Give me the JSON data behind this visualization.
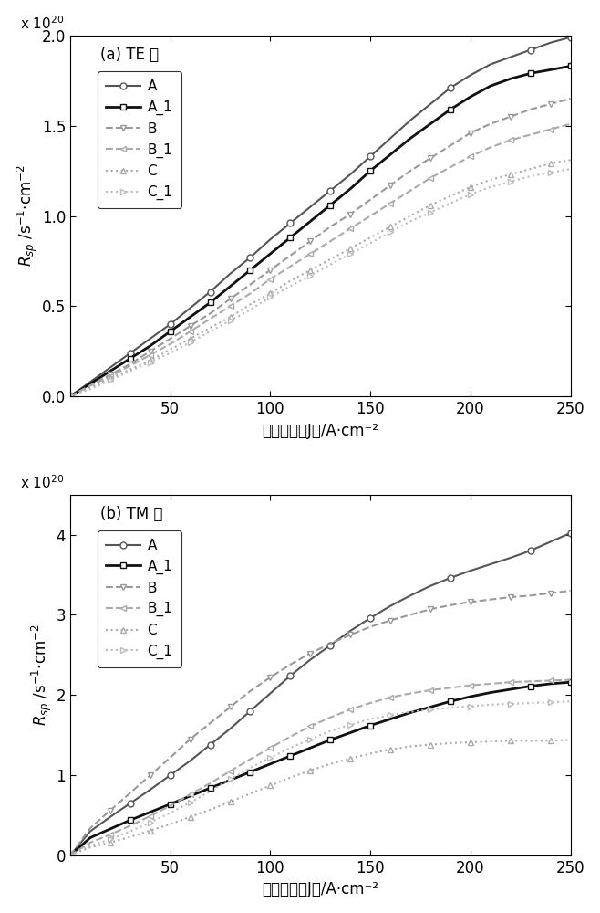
{
  "te": {
    "title": "(a) TE 模",
    "x": [
      0,
      10,
      20,
      30,
      40,
      50,
      60,
      70,
      80,
      90,
      100,
      110,
      120,
      130,
      140,
      150,
      160,
      170,
      180,
      190,
      200,
      210,
      220,
      230,
      240,
      250
    ],
    "A": [
      0.0,
      0.08,
      0.16,
      0.24,
      0.32,
      0.4,
      0.49,
      0.58,
      0.68,
      0.77,
      0.87,
      0.96,
      1.05,
      1.14,
      1.23,
      1.33,
      1.43,
      1.53,
      1.62,
      1.71,
      1.78,
      1.84,
      1.88,
      1.92,
      1.96,
      1.99
    ],
    "A_1": [
      0.0,
      0.07,
      0.14,
      0.21,
      0.28,
      0.36,
      0.44,
      0.52,
      0.61,
      0.7,
      0.79,
      0.88,
      0.97,
      1.06,
      1.15,
      1.25,
      1.34,
      1.43,
      1.51,
      1.59,
      1.66,
      1.72,
      1.76,
      1.79,
      1.81,
      1.83
    ],
    "B": [
      0.0,
      0.06,
      0.12,
      0.18,
      0.25,
      0.32,
      0.39,
      0.46,
      0.54,
      0.62,
      0.7,
      0.78,
      0.86,
      0.94,
      1.01,
      1.09,
      1.17,
      1.25,
      1.32,
      1.39,
      1.46,
      1.51,
      1.55,
      1.59,
      1.62,
      1.65
    ],
    "B_1": [
      0.0,
      0.06,
      0.11,
      0.17,
      0.23,
      0.29,
      0.36,
      0.43,
      0.5,
      0.57,
      0.65,
      0.72,
      0.79,
      0.86,
      0.93,
      1.0,
      1.07,
      1.14,
      1.21,
      1.27,
      1.33,
      1.38,
      1.42,
      1.45,
      1.48,
      1.51
    ],
    "C": [
      0.0,
      0.05,
      0.1,
      0.15,
      0.2,
      0.26,
      0.32,
      0.38,
      0.44,
      0.51,
      0.57,
      0.64,
      0.7,
      0.76,
      0.82,
      0.88,
      0.94,
      1.0,
      1.06,
      1.11,
      1.16,
      1.2,
      1.23,
      1.26,
      1.29,
      1.31
    ],
    "C_1": [
      0.0,
      0.04,
      0.09,
      0.14,
      0.19,
      0.24,
      0.3,
      0.36,
      0.42,
      0.48,
      0.55,
      0.61,
      0.67,
      0.73,
      0.79,
      0.85,
      0.91,
      0.97,
      1.02,
      1.07,
      1.12,
      1.16,
      1.19,
      1.22,
      1.24,
      1.26
    ],
    "ylim": [
      0,
      2.0
    ],
    "yticks": [
      0,
      0.5,
      1.0,
      1.5,
      2.0
    ],
    "marker_every_A": [
      0,
      3,
      5,
      7,
      9,
      11,
      13,
      15,
      19,
      23,
      25
    ],
    "marker_every_A1": [
      0,
      3,
      5,
      7,
      9,
      11,
      13,
      15,
      19,
      23,
      25
    ],
    "marker_every_B": [
      0,
      2,
      4,
      6,
      8,
      10,
      12,
      14,
      16,
      18,
      20,
      22,
      24
    ],
    "marker_every_B1": [
      0,
      2,
      4,
      6,
      8,
      10,
      12,
      14,
      16,
      18,
      20,
      22,
      24
    ],
    "marker_every_C": [
      0,
      2,
      4,
      6,
      8,
      10,
      12,
      14,
      16,
      18,
      20,
      22,
      24
    ],
    "marker_every_C1": [
      0,
      2,
      4,
      6,
      8,
      10,
      12,
      14,
      16,
      18,
      20,
      22,
      24
    ]
  },
  "tm": {
    "title": "(b) TM 模",
    "x": [
      0,
      10,
      20,
      30,
      40,
      50,
      60,
      70,
      80,
      90,
      100,
      110,
      120,
      130,
      140,
      150,
      160,
      170,
      180,
      190,
      200,
      210,
      220,
      230,
      240,
      250
    ],
    "A": [
      0.0,
      0.3,
      0.48,
      0.65,
      0.82,
      1.0,
      1.18,
      1.38,
      1.58,
      1.8,
      2.02,
      2.24,
      2.44,
      2.62,
      2.8,
      2.96,
      3.11,
      3.24,
      3.36,
      3.46,
      3.55,
      3.63,
      3.71,
      3.8,
      3.91,
      4.02
    ],
    "A_1": [
      0.0,
      0.22,
      0.33,
      0.44,
      0.54,
      0.64,
      0.74,
      0.84,
      0.94,
      1.04,
      1.14,
      1.24,
      1.34,
      1.44,
      1.53,
      1.62,
      1.7,
      1.78,
      1.85,
      1.92,
      1.98,
      2.03,
      2.07,
      2.11,
      2.14,
      2.16
    ],
    "B": [
      0.0,
      0.34,
      0.56,
      0.78,
      1.0,
      1.22,
      1.45,
      1.65,
      1.85,
      2.05,
      2.22,
      2.38,
      2.52,
      2.64,
      2.75,
      2.85,
      2.93,
      3.0,
      3.07,
      3.12,
      3.16,
      3.19,
      3.22,
      3.24,
      3.27,
      3.3
    ],
    "B_1": [
      0.0,
      0.16,
      0.26,
      0.37,
      0.49,
      0.62,
      0.76,
      0.9,
      1.05,
      1.2,
      1.34,
      1.48,
      1.61,
      1.72,
      1.82,
      1.9,
      1.97,
      2.02,
      2.06,
      2.09,
      2.12,
      2.14,
      2.16,
      2.17,
      2.18,
      2.19
    ],
    "C": [
      0.0,
      0.1,
      0.16,
      0.23,
      0.31,
      0.39,
      0.48,
      0.57,
      0.67,
      0.77,
      0.87,
      0.97,
      1.06,
      1.14,
      1.21,
      1.27,
      1.32,
      1.36,
      1.38,
      1.4,
      1.41,
      1.42,
      1.43,
      1.43,
      1.43,
      1.44
    ],
    "C_1": [
      0.0,
      0.12,
      0.2,
      0.3,
      0.41,
      0.53,
      0.66,
      0.8,
      0.95,
      1.09,
      1.22,
      1.34,
      1.45,
      1.55,
      1.63,
      1.7,
      1.75,
      1.79,
      1.82,
      1.84,
      1.86,
      1.88,
      1.89,
      1.9,
      1.91,
      1.92
    ],
    "ylim": [
      0,
      4.5
    ],
    "yticks": [
      0,
      1,
      2,
      3,
      4
    ],
    "marker_every_A": [
      0,
      3,
      5,
      7,
      9,
      11,
      13,
      15,
      19,
      23,
      25
    ],
    "marker_every_A1": [
      0,
      3,
      5,
      7,
      9,
      11,
      13,
      15,
      19,
      23,
      25
    ],
    "marker_every_B": [
      0,
      2,
      4,
      6,
      8,
      10,
      12,
      14,
      16,
      18,
      20,
      22,
      24
    ],
    "marker_every_B1": [
      0,
      2,
      4,
      6,
      8,
      10,
      12,
      14,
      16,
      18,
      20,
      22,
      24
    ],
    "marker_every_C": [
      0,
      2,
      4,
      6,
      8,
      10,
      12,
      14,
      16,
      18,
      20,
      22,
      24
    ],
    "marker_every_C1": [
      0,
      2,
      4,
      6,
      8,
      10,
      12,
      14,
      16,
      18,
      20,
      22,
      24
    ]
  },
  "color_A": "#555555",
  "color_A1": "#111111",
  "color_B": "#999999",
  "color_B1": "#aaaaaa",
  "color_C": "#aaaaaa",
  "color_C1": "#bbbbbb",
  "xlabel": "电流密度（J）/A·cm⁻²",
  "ylabel": "$R_{sp}$ /s$^{-1}$·cm$^{-2}$",
  "xlim": [
    0,
    250
  ],
  "xticks": [
    0,
    50,
    100,
    150,
    200,
    250
  ],
  "exponent_label": "x 10$^{20}$"
}
